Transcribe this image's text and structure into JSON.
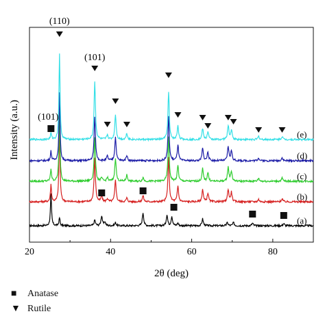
{
  "chart_data": {
    "type": "line",
    "xlabel": "2θ (deg)",
    "ylabel": "Intensity (a.u.)",
    "xlim": [
      20,
      90
    ],
    "xticks": [
      "20",
      "40",
      "60",
      "80"
    ],
    "grid": false,
    "series": [
      {
        "name": "(a)",
        "color": "#000000",
        "peaks": [
          [
            25.3,
            1.0
          ],
          [
            27.4,
            0.25
          ],
          [
            36.1,
            0.18
          ],
          [
            37.8,
            0.32
          ],
          [
            38.6,
            0.12
          ],
          [
            41.2,
            0.1
          ],
          [
            48.0,
            0.42
          ],
          [
            53.9,
            0.35
          ],
          [
            55.1,
            0.3
          ],
          [
            56.6,
            0.08
          ],
          [
            62.7,
            0.22
          ],
          [
            68.8,
            0.1
          ],
          [
            70.3,
            0.1
          ],
          [
            75.0,
            0.08
          ],
          [
            82.7,
            0.07
          ]
        ]
      },
      {
        "name": "(b)",
        "color": "#d62020",
        "peaks": [
          [
            25.3,
            0.55
          ],
          [
            27.4,
            2.3
          ],
          [
            36.1,
            1.4
          ],
          [
            37.8,
            0.18
          ],
          [
            39.2,
            0.1
          ],
          [
            41.2,
            0.7
          ],
          [
            44.0,
            0.12
          ],
          [
            48.0,
            0.2
          ],
          [
            54.3,
            1.4
          ],
          [
            56.6,
            0.5
          ],
          [
            62.7,
            0.4
          ],
          [
            64.0,
            0.28
          ],
          [
            69.0,
            0.4
          ],
          [
            69.8,
            0.3
          ],
          [
            76.5,
            0.08
          ],
          [
            82.3,
            0.1
          ]
        ]
      },
      {
        "name": "(c)",
        "color": "#2ecc2e",
        "peaks": [
          [
            25.3,
            0.4
          ],
          [
            27.4,
            2.2
          ],
          [
            36.1,
            1.4
          ],
          [
            37.8,
            0.1
          ],
          [
            39.2,
            0.12
          ],
          [
            41.2,
            0.75
          ],
          [
            44.0,
            0.2
          ],
          [
            48.0,
            0.12
          ],
          [
            54.3,
            1.4
          ],
          [
            56.6,
            0.5
          ],
          [
            62.7,
            0.4
          ],
          [
            64.0,
            0.28
          ],
          [
            69.0,
            0.45
          ],
          [
            69.8,
            0.32
          ],
          [
            76.5,
            0.1
          ],
          [
            82.3,
            0.1
          ]
        ]
      },
      {
        "name": "(d)",
        "color": "#1a1aa6",
        "peaks": [
          [
            25.3,
            0.3
          ],
          [
            27.4,
            2.2
          ],
          [
            36.1,
            1.4
          ],
          [
            39.2,
            0.15
          ],
          [
            41.2,
            0.75
          ],
          [
            44.0,
            0.18
          ],
          [
            54.3,
            1.4
          ],
          [
            56.6,
            0.5
          ],
          [
            62.7,
            0.4
          ],
          [
            64.0,
            0.28
          ],
          [
            69.0,
            0.45
          ],
          [
            69.8,
            0.32
          ],
          [
            76.5,
            0.1
          ],
          [
            82.3,
            0.1
          ]
        ]
      },
      {
        "name": "(e)",
        "color": "#33dfe6",
        "peaks": [
          [
            25.3,
            0.2
          ],
          [
            27.4,
            2.75
          ],
          [
            36.1,
            1.85
          ],
          [
            39.2,
            0.15
          ],
          [
            41.2,
            0.8
          ],
          [
            44.0,
            0.2
          ],
          [
            54.3,
            1.5
          ],
          [
            56.6,
            0.45
          ],
          [
            62.7,
            0.35
          ],
          [
            64.0,
            0.25
          ],
          [
            69.0,
            0.45
          ],
          [
            69.8,
            0.3
          ],
          [
            76.5,
            0.1
          ],
          [
            82.3,
            0.1
          ]
        ]
      }
    ],
    "peak_labels": [
      {
        "text": "(110)",
        "x": 27.4
      },
      {
        "text": "(101)",
        "x": 36.1
      },
      {
        "text": "(101)",
        "x": 25.3
      }
    ],
    "rutile_markers": [
      27.4,
      36.1,
      39.2,
      41.2,
      44.0,
      54.3,
      56.6,
      62.7,
      64.0,
      69.0,
      70.3,
      76.5,
      82.3
    ],
    "anatase_markers_top": [
      25.3
    ],
    "anatase_markers_low": [
      37.8,
      48.0,
      55.6,
      75.0,
      82.7
    ]
  },
  "legend": {
    "anatase_label": "Anatase",
    "rutile_label": "Rutile",
    "anatase_symbol": "■",
    "rutile_symbol": "▼"
  }
}
